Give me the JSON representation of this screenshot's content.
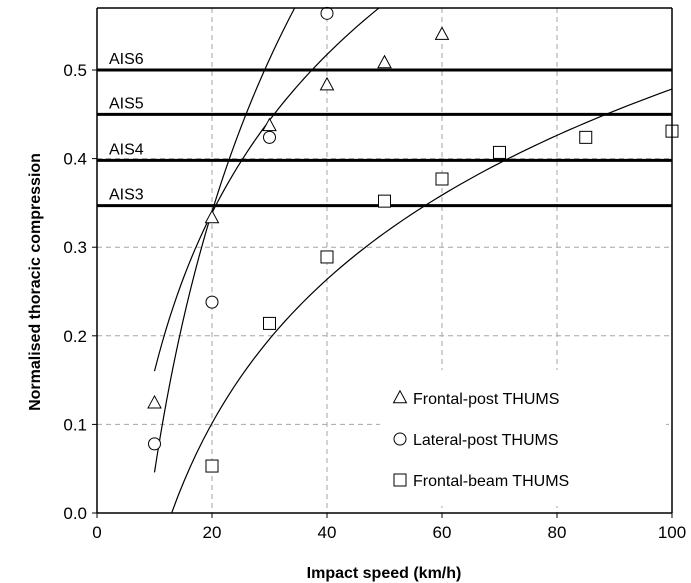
{
  "chart_data": {
    "type": "scatter",
    "xlabel": "Impact speed (km/h)",
    "ylabel": "Normalised thoracic compression",
    "xlim": [
      0,
      100
    ],
    "ylim": [
      0,
      0.57
    ],
    "x_ticks": [
      "0",
      "20",
      "40",
      "60",
      "80",
      "100"
    ],
    "y_ticks": [
      "0.0",
      "0.1",
      "0.2",
      "0.3",
      "0.4",
      "0.5"
    ],
    "grid": true,
    "legend_position": "bottom-right",
    "thresholds": [
      {
        "label": "AIS6",
        "value": 0.5
      },
      {
        "label": "AIS5",
        "value": 0.45
      },
      {
        "label": "AIS4",
        "value": 0.398
      },
      {
        "label": "AIS3",
        "value": 0.347
      }
    ],
    "series": [
      {
        "name": "Frontal-post THUMS",
        "marker": "triangle",
        "x": [
          10,
          20,
          30,
          40,
          50,
          60
        ],
        "y": [
          0.124,
          0.333,
          0.437,
          0.483,
          0.508,
          0.54
        ],
        "trend": {
          "a": 0.2578,
          "b": -0.4335,
          "x_range": [
            10,
            62
          ]
        }
      },
      {
        "name": "Lateral-post THUMS",
        "marker": "circle",
        "x": [
          10,
          20,
          30,
          40
        ],
        "y": [
          0.078,
          0.238,
          0.424,
          0.564
        ],
        "trend": {
          "a": 0.4245,
          "b": -0.9316,
          "x_range": [
            10,
            38
          ]
        }
      },
      {
        "name": "Frontal-beam THUMS",
        "marker": "square",
        "x": [
          20,
          30,
          40,
          50,
          60,
          70,
          85,
          100
        ],
        "y": [
          0.053,
          0.214,
          0.289,
          0.352,
          0.377,
          0.407,
          0.424,
          0.431
        ],
        "trend": {
          "a": 0.2344,
          "b": -0.6009,
          "x_range": [
            13,
            100
          ]
        }
      }
    ]
  }
}
